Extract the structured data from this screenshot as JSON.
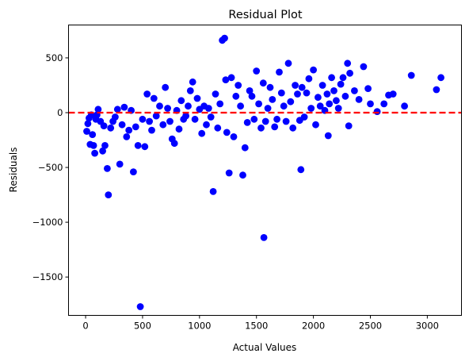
{
  "chart_data": {
    "type": "scatter",
    "title": "Residual Plot",
    "xlabel": "Actual Values",
    "ylabel": "Residuals",
    "xlim": [
      -150,
      3300
    ],
    "ylim": [
      -1850,
      800
    ],
    "xticks": [
      0,
      500,
      1000,
      1500,
      2000,
      2500,
      3000
    ],
    "yticks": [
      500,
      0,
      -500,
      -1000,
      -1500
    ],
    "ytick_labels": [
      "500",
      "0",
      "−500",
      "−1000",
      "−1500"
    ],
    "point_color": "#0000ff",
    "reference_line": {
      "y": 0,
      "color": "#ff0000",
      "style": "dashed"
    },
    "grid": false,
    "points": [
      [
        10,
        -170
      ],
      [
        20,
        -100
      ],
      [
        30,
        -50
      ],
      [
        40,
        -290
      ],
      [
        50,
        -20
      ],
      [
        60,
        -200
      ],
      [
        70,
        -300
      ],
      [
        80,
        -370
      ],
      [
        90,
        -60
      ],
      [
        100,
        -20
      ],
      [
        110,
        30
      ],
      [
        130,
        -80
      ],
      [
        150,
        -350
      ],
      [
        160,
        -120
      ],
      [
        170,
        -300
      ],
      [
        190,
        -510
      ],
      [
        200,
        -750
      ],
      [
        220,
        -140
      ],
      [
        240,
        -80
      ],
      [
        260,
        -40
      ],
      [
        280,
        30
      ],
      [
        300,
        -470
      ],
      [
        320,
        -110
      ],
      [
        340,
        50
      ],
      [
        360,
        -220
      ],
      [
        380,
        -160
      ],
      [
        400,
        20
      ],
      [
        420,
        -540
      ],
      [
        440,
        -130
      ],
      [
        460,
        -300
      ],
      [
        480,
        -1770
      ],
      [
        500,
        -60
      ],
      [
        520,
        -310
      ],
      [
        540,
        170
      ],
      [
        560,
        -80
      ],
      [
        580,
        -160
      ],
      [
        600,
        130
      ],
      [
        620,
        -30
      ],
      [
        650,
        60
      ],
      [
        680,
        -110
      ],
      [
        700,
        230
      ],
      [
        720,
        40
      ],
      [
        740,
        -80
      ],
      [
        760,
        -240
      ],
      [
        780,
        -280
      ],
      [
        800,
        20
      ],
      [
        820,
        -150
      ],
      [
        840,
        110
      ],
      [
        860,
        -60
      ],
      [
        880,
        -30
      ],
      [
        900,
        60
      ],
      [
        920,
        200
      ],
      [
        940,
        280
      ],
      [
        960,
        -60
      ],
      [
        980,
        130
      ],
      [
        1000,
        30
      ],
      [
        1020,
        -190
      ],
      [
        1040,
        60
      ],
      [
        1060,
        -110
      ],
      [
        1080,
        40
      ],
      [
        1100,
        -40
      ],
      [
        1120,
        -720
      ],
      [
        1140,
        170
      ],
      [
        1160,
        -140
      ],
      [
        1180,
        80
      ],
      [
        1200,
        660
      ],
      [
        1220,
        680
      ],
      [
        1230,
        300
      ],
      [
        1240,
        -180
      ],
      [
        1260,
        -550
      ],
      [
        1280,
        320
      ],
      [
        1300,
        -220
      ],
      [
        1320,
        150
      ],
      [
        1340,
        250
      ],
      [
        1360,
        60
      ],
      [
        1380,
        -570
      ],
      [
        1400,
        -320
      ],
      [
        1420,
        -90
      ],
      [
        1440,
        200
      ],
      [
        1460,
        150
      ],
      [
        1480,
        -60
      ],
      [
        1500,
        380
      ],
      [
        1520,
        80
      ],
      [
        1540,
        -140
      ],
      [
        1560,
        270
      ],
      [
        1565,
        -1140
      ],
      [
        1580,
        -80
      ],
      [
        1600,
        40
      ],
      [
        1620,
        230
      ],
      [
        1640,
        120
      ],
      [
        1660,
        -130
      ],
      [
        1680,
        -60
      ],
      [
        1700,
        370
      ],
      [
        1720,
        180
      ],
      [
        1740,
        60
      ],
      [
        1760,
        -80
      ],
      [
        1780,
        450
      ],
      [
        1800,
        100
      ],
      [
        1820,
        -140
      ],
      [
        1840,
        250
      ],
      [
        1860,
        170
      ],
      [
        1880,
        -70
      ],
      [
        1890,
        -520
      ],
      [
        1900,
        230
      ],
      [
        1920,
        -40
      ],
      [
        1940,
        180
      ],
      [
        1960,
        310
      ],
      [
        1980,
        40
      ],
      [
        2000,
        390
      ],
      [
        2020,
        -110
      ],
      [
        2040,
        140
      ],
      [
        2060,
        60
      ],
      [
        2080,
        250
      ],
      [
        2100,
        20
      ],
      [
        2120,
        170
      ],
      [
        2130,
        -210
      ],
      [
        2140,
        80
      ],
      [
        2160,
        320
      ],
      [
        2180,
        200
      ],
      [
        2200,
        110
      ],
      [
        2220,
        40
      ],
      [
        2240,
        260
      ],
      [
        2260,
        320
      ],
      [
        2280,
        150
      ],
      [
        2300,
        450
      ],
      [
        2310,
        -120
      ],
      [
        2320,
        360
      ],
      [
        2360,
        200
      ],
      [
        2400,
        120
      ],
      [
        2440,
        420
      ],
      [
        2480,
        220
      ],
      [
        2500,
        80
      ],
      [
        2560,
        10
      ],
      [
        2620,
        80
      ],
      [
        2660,
        160
      ],
      [
        2700,
        170
      ],
      [
        2800,
        60
      ],
      [
        2860,
        340
      ],
      [
        3080,
        210
      ],
      [
        3120,
        320
      ]
    ]
  }
}
